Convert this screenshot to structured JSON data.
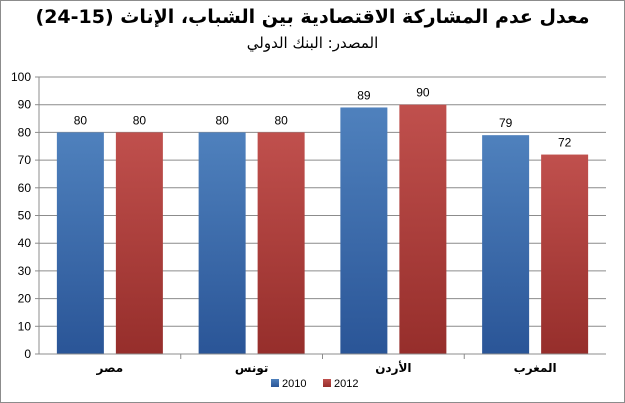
{
  "colors": {
    "series_2010_top": "#4f81bd",
    "series_2010_bottom": "#2a5597",
    "series_2012_top": "#c0504d",
    "series_2012_bottom": "#962e2b",
    "gridline": "#8c8c8c"
  },
  "chart_data": {
    "type": "bar",
    "title": "معدل عدم المشاركة الاقتصادية بين الشباب، الإناث (15-24)",
    "subtitle": "المصدر: البنك الدولي",
    "categories": [
      "مصر",
      "تونس",
      "الأردن",
      "المغرب"
    ],
    "series": [
      {
        "name": "2010",
        "values": [
          80,
          80,
          89,
          79
        ]
      },
      {
        "name": "2012",
        "values": [
          80,
          80,
          90,
          72
        ]
      }
    ],
    "ylim": [
      0,
      100
    ],
    "yticks": [
      "0",
      "10",
      "20",
      "30",
      "40",
      "50",
      "60",
      "70",
      "80",
      "90",
      "100"
    ],
    "grid": true,
    "legend_position": "bottom"
  }
}
